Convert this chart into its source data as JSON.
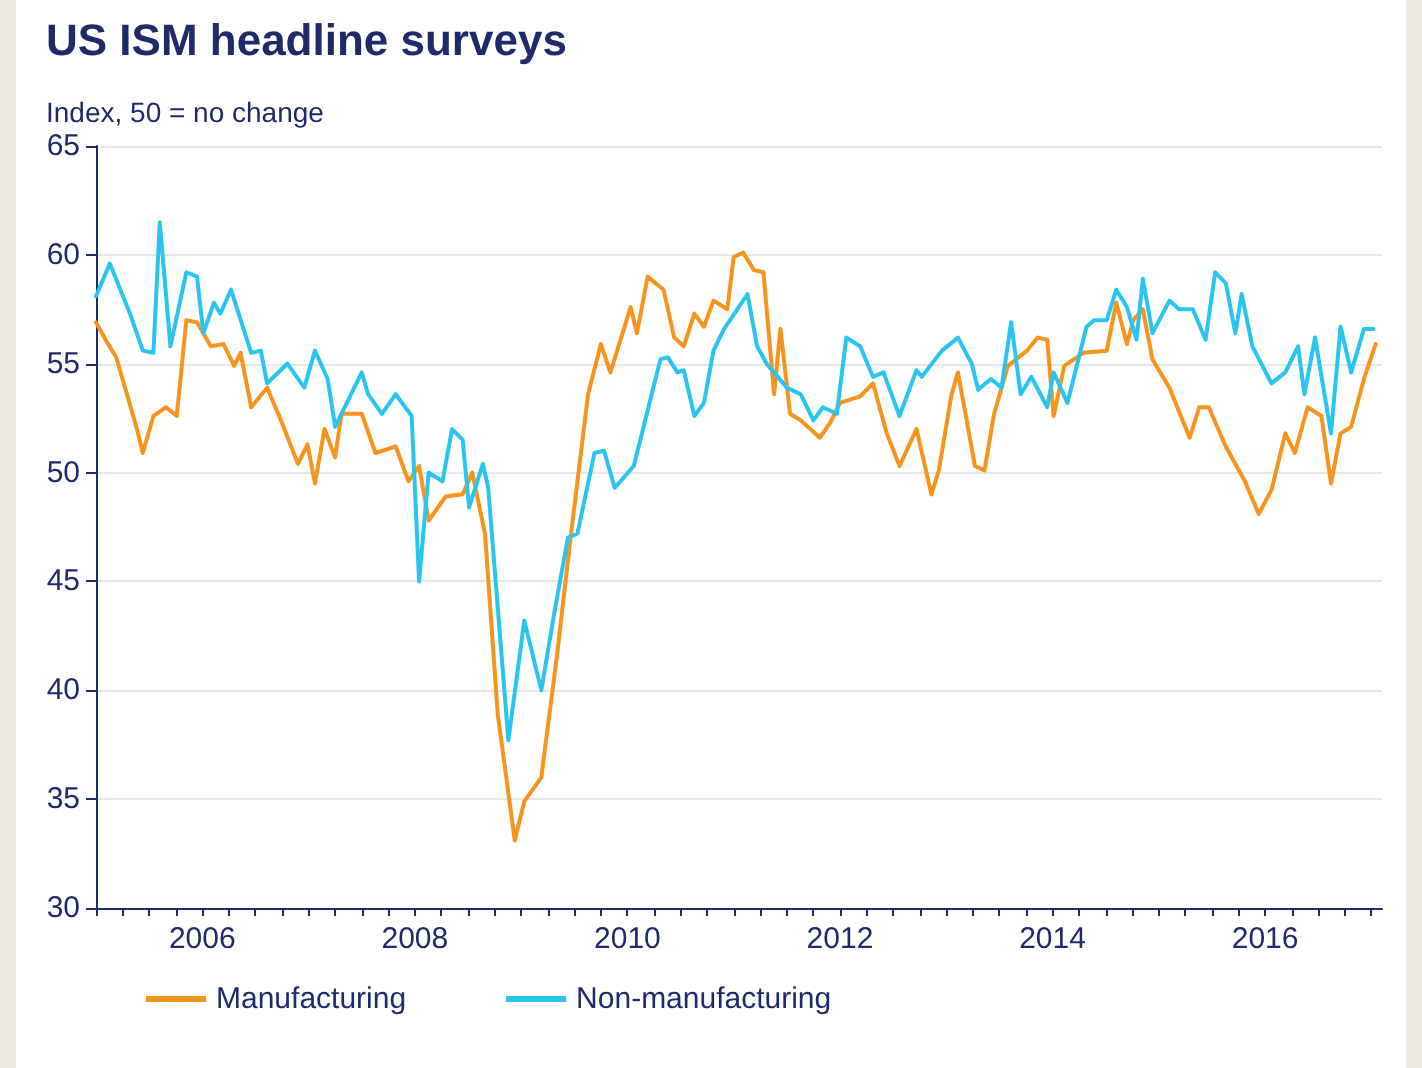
{
  "chart_data": {
    "type": "line",
    "title": "US ISM headline surveys",
    "subtitle": "Index, 50 = no change",
    "xlim": [
      2005,
      2017.1
    ],
    "xticks": [
      2006,
      2008,
      2010,
      2012,
      2014,
      2016
    ],
    "ylim": [
      30,
      65
    ],
    "yticks": [
      30,
      35,
      40,
      45,
      50,
      55,
      60,
      65
    ],
    "grid": "y",
    "legend": "bottom left",
    "marker": "none",
    "line_style": "solid",
    "series": [
      {
        "name": "Manufacturing",
        "color": "#f7941d",
        "x": [
          2005.0,
          2005.09,
          2005.19,
          2005.38,
          2005.44,
          2005.54,
          2005.66,
          2005.76,
          2005.85,
          2005.95,
          2006.08,
          2006.2,
          2006.3,
          2006.36,
          2006.46,
          2006.61,
          2006.74,
          2006.9,
          2006.99,
          2007.06,
          2007.15,
          2007.25,
          2007.31,
          2007.5,
          2007.63,
          2007.82,
          2007.94,
          2008.04,
          2008.13,
          2008.29,
          2008.45,
          2008.54,
          2008.66,
          2008.78,
          2008.94,
          2009.03,
          2009.19,
          2009.34,
          2009.47,
          2009.63,
          2009.75,
          2009.84,
          2010.03,
          2010.09,
          2010.19,
          2010.34,
          2010.44,
          2010.53,
          2010.63,
          2010.72,
          2010.81,
          2010.94,
          2011.0,
          2011.09,
          2011.19,
          2011.28,
          2011.38,
          2011.44,
          2011.53,
          2011.63,
          2011.81,
          2011.91,
          2012.0,
          2012.19,
          2012.31,
          2012.44,
          2012.56,
          2012.72,
          2012.86,
          2012.93,
          2013.05,
          2013.11,
          2013.27,
          2013.36,
          2013.45,
          2013.58,
          2013.76,
          2013.86,
          2013.95,
          2014.01,
          2014.11,
          2014.29,
          2014.51,
          2014.6,
          2014.7,
          2014.76,
          2014.85,
          2014.94,
          2015.1,
          2015.29,
          2015.38,
          2015.47,
          2015.63,
          2015.81,
          2015.94,
          2016.06,
          2016.19,
          2016.28,
          2016.4,
          2016.53,
          2016.62,
          2016.71,
          2016.81,
          2016.93,
          2017.04
        ],
        "values": [
          56.9,
          56.1,
          55.3,
          52.1,
          50.9,
          52.6,
          53.0,
          52.6,
          57.0,
          56.9,
          55.8,
          55.9,
          54.9,
          55.5,
          53.0,
          53.9,
          52.4,
          50.4,
          51.3,
          49.5,
          52.0,
          50.7,
          52.7,
          52.7,
          50.9,
          51.2,
          49.6,
          50.3,
          47.8,
          48.9,
          49.0,
          50.0,
          47.2,
          38.9,
          33.1,
          34.9,
          36.0,
          41.7,
          47.2,
          53.6,
          55.9,
          54.6,
          57.6,
          56.4,
          59.0,
          58.4,
          56.2,
          55.8,
          57.3,
          56.7,
          57.9,
          57.5,
          59.9,
          60.1,
          59.3,
          59.2,
          53.6,
          56.6,
          52.7,
          52.4,
          51.6,
          52.3,
          53.2,
          53.5,
          54.1,
          51.8,
          50.3,
          52.0,
          49.0,
          50.1,
          53.6,
          54.6,
          50.3,
          50.1,
          52.7,
          54.9,
          55.6,
          56.2,
          56.1,
          52.6,
          54.9,
          55.5,
          55.6,
          57.8,
          55.9,
          57.0,
          57.5,
          55.2,
          53.9,
          51.6,
          53.0,
          53.0,
          51.2,
          49.6,
          48.1,
          49.2,
          51.8,
          50.9,
          53.0,
          52.6,
          49.5,
          51.8,
          52.1,
          54.3,
          55.9
        ]
      },
      {
        "name": "Non-manufacturing",
        "color": "#29c5f0",
        "x": [
          2005.0,
          2005.13,
          2005.32,
          2005.44,
          2005.54,
          2005.6,
          2005.7,
          2005.85,
          2005.95,
          2006.01,
          2006.11,
          2006.17,
          2006.27,
          2006.46,
          2006.55,
          2006.61,
          2006.8,
          2006.96,
          2007.06,
          2007.18,
          2007.25,
          2007.5,
          2007.56,
          2007.69,
          2007.82,
          2007.97,
          2008.04,
          2008.13,
          2008.26,
          2008.35,
          2008.45,
          2008.51,
          2008.64,
          2008.69,
          2008.88,
          2009.03,
          2009.19,
          2009.31,
          2009.44,
          2009.53,
          2009.69,
          2009.78,
          2009.88,
          2010.06,
          2010.31,
          2010.38,
          2010.47,
          2010.53,
          2010.63,
          2010.72,
          2010.81,
          2010.91,
          2011.13,
          2011.22,
          2011.31,
          2011.5,
          2011.63,
          2011.75,
          2011.84,
          2011.97,
          2012.06,
          2012.19,
          2012.31,
          2012.41,
          2012.56,
          2012.72,
          2012.77,
          2012.96,
          2013.11,
          2013.24,
          2013.3,
          2013.42,
          2013.52,
          2013.61,
          2013.7,
          2013.8,
          2013.95,
          2014.01,
          2014.14,
          2014.32,
          2014.39,
          2014.51,
          2014.6,
          2014.7,
          2014.79,
          2014.85,
          2014.94,
          2015.1,
          2015.19,
          2015.32,
          2015.44,
          2015.53,
          2015.63,
          2015.72,
          2015.78,
          2015.88,
          2016.06,
          2016.19,
          2016.31,
          2016.37,
          2016.47,
          2016.62,
          2016.71,
          2016.81,
          2016.93,
          2017.02
        ],
        "values": [
          58.1,
          59.6,
          57.3,
          55.6,
          55.5,
          61.5,
          55.8,
          59.2,
          59.0,
          56.4,
          57.8,
          57.3,
          58.4,
          55.5,
          55.6,
          54.1,
          55.0,
          53.9,
          55.6,
          54.3,
          52.1,
          54.6,
          53.6,
          52.7,
          53.6,
          52.6,
          45.0,
          50.0,
          49.6,
          52.0,
          51.5,
          48.4,
          50.4,
          49.3,
          37.7,
          43.2,
          40.0,
          43.5,
          47.0,
          47.2,
          50.9,
          51.0,
          49.3,
          50.3,
          55.2,
          55.3,
          54.6,
          54.7,
          52.6,
          53.2,
          55.6,
          56.6,
          58.2,
          55.8,
          55.0,
          53.9,
          53.6,
          52.4,
          53.0,
          52.7,
          56.2,
          55.8,
          54.4,
          54.6,
          52.6,
          54.7,
          54.4,
          55.6,
          56.2,
          55.0,
          53.8,
          54.3,
          53.9,
          56.9,
          53.6,
          54.4,
          53.0,
          54.6,
          53.2,
          56.7,
          57.0,
          57.0,
          58.4,
          57.6,
          56.1,
          58.9,
          56.4,
          57.9,
          57.5,
          57.5,
          56.1,
          59.2,
          58.7,
          56.4,
          58.2,
          55.8,
          54.1,
          54.6,
          55.8,
          53.6,
          56.2,
          51.8,
          56.7,
          54.6,
          56.6,
          56.6
        ]
      }
    ]
  }
}
